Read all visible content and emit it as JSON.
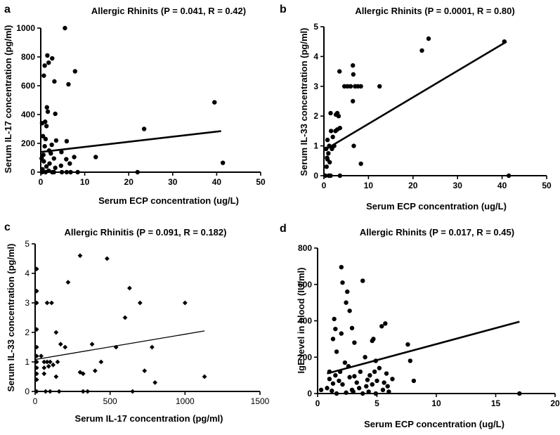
{
  "chart_data": [
    {
      "panel": "a",
      "type": "scatter",
      "title": "Allergic Rhinits (P = 0.041, R = 0.42)",
      "xlabel": "Serum ECP concentration (ug/L)",
      "ylabel": "Serum IL-17 concentration (pg/ml)",
      "xlim": [
        0,
        50
      ],
      "ylim": [
        0,
        1000
      ],
      "xticks": [
        0,
        10,
        20,
        30,
        40,
        50
      ],
      "yticks": [
        0,
        200,
        400,
        600,
        800,
        1000
      ],
      "marker": "circle",
      "fit_line": [
        [
          0,
          140
        ],
        [
          41,
          285
        ]
      ],
      "points": [
        [
          5.5,
          1000
        ],
        [
          1.5,
          810
        ],
        [
          2.6,
          790
        ],
        [
          1.8,
          760
        ],
        [
          0.9,
          740
        ],
        [
          7.8,
          700
        ],
        [
          0.7,
          670
        ],
        [
          6.3,
          610
        ],
        [
          3.1,
          630
        ],
        [
          1.4,
          450
        ],
        [
          1.6,
          420
        ],
        [
          3.3,
          405
        ],
        [
          39.5,
          485
        ],
        [
          1.0,
          350
        ],
        [
          1.3,
          320
        ],
        [
          23.5,
          300
        ],
        [
          0.5,
          250
        ],
        [
          0.9,
          180
        ],
        [
          2.5,
          190
        ],
        [
          3.5,
          220
        ],
        [
          5.9,
          215
        ],
        [
          0.6,
          120
        ],
        [
          1.9,
          150
        ],
        [
          4.7,
          140
        ],
        [
          7.6,
          105
        ],
        [
          12.5,
          105
        ],
        [
          3.0,
          95
        ],
        [
          5.8,
          90
        ],
        [
          1.3,
          40
        ],
        [
          2.0,
          60
        ],
        [
          3.3,
          30
        ],
        [
          4.6,
          45
        ],
        [
          6.6,
          60
        ],
        [
          0.4,
          20
        ],
        [
          1.8,
          10
        ],
        [
          2.6,
          0
        ],
        [
          3.0,
          0
        ],
        [
          4.8,
          0
        ],
        [
          5.9,
          0
        ],
        [
          6.8,
          0
        ],
        [
          8.4,
          0
        ],
        [
          22.0,
          0
        ],
        [
          41.4,
          65
        ],
        [
          0.3,
          0
        ],
        [
          1.1,
          0
        ],
        [
          0.2,
          95
        ],
        [
          0.7,
          75
        ],
        [
          2.3,
          130
        ],
        [
          1.1,
          230
        ],
        [
          0.3,
          340
        ]
      ]
    },
    {
      "panel": "b",
      "type": "scatter",
      "title": "Allergic Rhinits (P = 0.0001, R = 0.80)",
      "xlabel": "Serum ECP concentration (ug/L)",
      "ylabel": "Serum IL-33 concentration (pg/ml)",
      "xlim": [
        0,
        50
      ],
      "ylim": [
        0,
        5
      ],
      "xticks": [
        0,
        10,
        20,
        30,
        40,
        50
      ],
      "yticks": [
        0,
        1,
        2,
        3,
        4,
        5
      ],
      "marker": "circle",
      "fit_line": [
        [
          0,
          0.85
        ],
        [
          41,
          4.5
        ]
      ],
      "points": [
        [
          23.5,
          4.6
        ],
        [
          22.0,
          4.2
        ],
        [
          40.5,
          4.5
        ],
        [
          6.5,
          3.7
        ],
        [
          3.5,
          3.5
        ],
        [
          4.6,
          3.0
        ],
        [
          5.3,
          3.0
        ],
        [
          6.0,
          3.0
        ],
        [
          7.0,
          3.0
        ],
        [
          7.6,
          3.0
        ],
        [
          8.3,
          3.0
        ],
        [
          12.5,
          3.0
        ],
        [
          6.6,
          3.4
        ],
        [
          6.5,
          2.5
        ],
        [
          3.0,
          2.1
        ],
        [
          2.7,
          2.05
        ],
        [
          1.5,
          2.1
        ],
        [
          3.3,
          2.0
        ],
        [
          3.6,
          1.6
        ],
        [
          3.0,
          1.55
        ],
        [
          2.6,
          1.5
        ],
        [
          1.6,
          1.5
        ],
        [
          0.8,
          1.2
        ],
        [
          1.2,
          1.0
        ],
        [
          2.3,
          1.0
        ],
        [
          1.8,
          0.9
        ],
        [
          1.0,
          0.75
        ],
        [
          0.7,
          0.6
        ],
        [
          1.3,
          0.45
        ],
        [
          0.8,
          0.55
        ],
        [
          0.5,
          0.9
        ],
        [
          6.7,
          1.0
        ],
        [
          8.3,
          0.4
        ],
        [
          1.1,
          0.0
        ],
        [
          1.5,
          0.0
        ],
        [
          0.3,
          0.0
        ],
        [
          3.6,
          0.0
        ],
        [
          41.5,
          0.0
        ],
        [
          0.6,
          0.3
        ],
        [
          2.0,
          1.3
        ]
      ]
    },
    {
      "panel": "c",
      "type": "scatter",
      "title": "Allergic Rhinitis (P = 0.091, R = 0.182)",
      "xlabel": "Serum IL-17 concentration (pg/ml)",
      "ylabel": "Serum  IL-33 concentration (pg/ml)",
      "xlim": [
        0,
        1500
      ],
      "ylim": [
        0,
        5
      ],
      "xticks": [
        0,
        500,
        1000,
        1500
      ],
      "yticks": [
        0,
        1,
        2,
        3,
        4,
        5
      ],
      "marker": "diamond",
      "fit_line": [
        [
          0,
          1.08
        ],
        [
          1130,
          2.05
        ]
      ],
      "points": [
        [
          10,
          4.15
        ],
        [
          10,
          3.4
        ],
        [
          10,
          3.0
        ],
        [
          10,
          2.1
        ],
        [
          10,
          1.5
        ],
        [
          10,
          1.2
        ],
        [
          10,
          1.0
        ],
        [
          10,
          0.8
        ],
        [
          10,
          0.6
        ],
        [
          10,
          0.4
        ],
        [
          10,
          0.0
        ],
        [
          300,
          4.6
        ],
        [
          480,
          4.5
        ],
        [
          220,
          3.7
        ],
        [
          630,
          3.5
        ],
        [
          700,
          3.0
        ],
        [
          1000,
          3.0
        ],
        [
          80,
          3.0
        ],
        [
          110,
          3.0
        ],
        [
          600,
          2.5
        ],
        [
          140,
          2.0
        ],
        [
          170,
          1.6
        ],
        [
          200,
          1.5
        ],
        [
          380,
          1.6
        ],
        [
          540,
          1.5
        ],
        [
          780,
          1.5
        ],
        [
          400,
          0.7
        ],
        [
          730,
          0.7
        ],
        [
          300,
          0.65
        ],
        [
          320,
          0.6
        ],
        [
          440,
          1.0
        ],
        [
          800,
          0.3
        ],
        [
          1130,
          0.5
        ],
        [
          140,
          0.5
        ],
        [
          60,
          1.0
        ],
        [
          100,
          1.0
        ],
        [
          60,
          0.8
        ],
        [
          90,
          0.85
        ],
        [
          120,
          0.9
        ],
        [
          150,
          1.0
        ],
        [
          60,
          0.6
        ],
        [
          70,
          0.0
        ],
        [
          100,
          0.0
        ],
        [
          160,
          0.0
        ],
        [
          320,
          0.0
        ],
        [
          350,
          0.0
        ],
        [
          650,
          0.0
        ],
        [
          40,
          1.2
        ],
        [
          80,
          1.0
        ]
      ]
    },
    {
      "panel": "d",
      "type": "scatter",
      "title": "Allergic Rhinits (P = 0.017, R = 0.45)",
      "xlabel": "Serum ECP concentration (ug/L)",
      "ylabel": "IgE level in blood (IU/ml)",
      "xlim": [
        0,
        20
      ],
      "ylim": [
        0,
        800
      ],
      "xticks": [
        0,
        5,
        10,
        15,
        20
      ],
      "yticks": [
        0,
        200,
        400,
        600,
        800
      ],
      "marker": "circle",
      "fit_line": [
        [
          0.8,
          110
        ],
        [
          17,
          395
        ]
      ],
      "points": [
        [
          2.0,
          695
        ],
        [
          2.1,
          610
        ],
        [
          3.8,
          620
        ],
        [
          2.5,
          560
        ],
        [
          2.4,
          500
        ],
        [
          2.7,
          455
        ],
        [
          1.4,
          410
        ],
        [
          1.5,
          355
        ],
        [
          2.9,
          360
        ],
        [
          5.7,
          385
        ],
        [
          5.4,
          370
        ],
        [
          1.3,
          300
        ],
        [
          2.0,
          330
        ],
        [
          4.7,
          300
        ],
        [
          4.6,
          290
        ],
        [
          3.1,
          280
        ],
        [
          1.6,
          230
        ],
        [
          7.6,
          270
        ],
        [
          7.8,
          180
        ],
        [
          4.0,
          200
        ],
        [
          1.0,
          120
        ],
        [
          1.5,
          100
        ],
        [
          2.3,
          170
        ],
        [
          2.6,
          150
        ],
        [
          4.9,
          180
        ],
        [
          5.2,
          140
        ],
        [
          1.0,
          80
        ],
        [
          1.8,
          70
        ],
        [
          2.1,
          50
        ],
        [
          2.7,
          90
        ],
        [
          3.3,
          60
        ],
        [
          3.5,
          30
        ],
        [
          4.1,
          40
        ],
        [
          4.4,
          100
        ],
        [
          4.8,
          120
        ],
        [
          5.0,
          70
        ],
        [
          5.6,
          60
        ],
        [
          5.8,
          110
        ],
        [
          6.3,
          80
        ],
        [
          8.1,
          70
        ],
        [
          0.3,
          20
        ],
        [
          0.8,
          30
        ],
        [
          1.2,
          15
        ],
        [
          1.6,
          0
        ],
        [
          2.4,
          5
        ],
        [
          3.0,
          10
        ],
        [
          3.8,
          0
        ],
        [
          4.3,
          10
        ],
        [
          4.9,
          0
        ],
        [
          5.5,
          20
        ],
        [
          6.0,
          10
        ],
        [
          17.0,
          0
        ],
        [
          1.9,
          120
        ],
        [
          3.6,
          120
        ],
        [
          2.9,
          20
        ],
        [
          4.6,
          50
        ],
        [
          5.9,
          40
        ],
        [
          1.3,
          55
        ],
        [
          3.1,
          95
        ],
        [
          4.2,
          75
        ]
      ]
    }
  ]
}
